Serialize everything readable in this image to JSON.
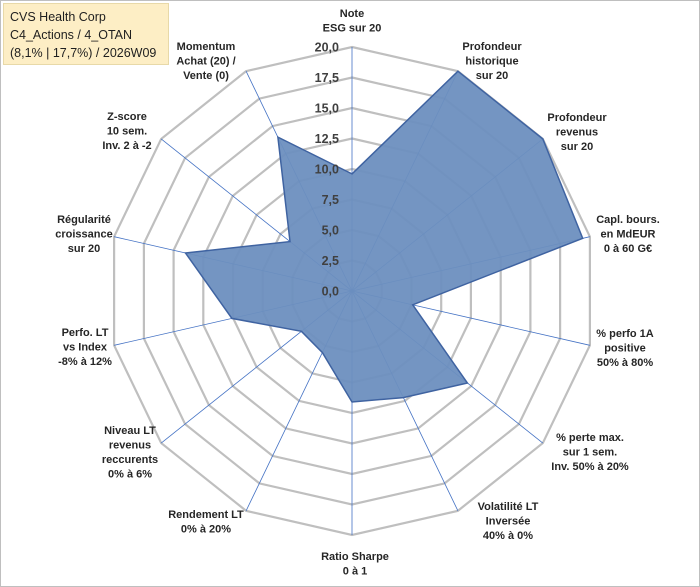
{
  "title_box": {
    "line1": "CVS Health Corp",
    "line2": "C4_Actions / 4_OTAN",
    "line3": "(8,1% | 17,7%) / 2026W09"
  },
  "chart_data": {
    "type": "radar",
    "r_range": [
      0,
      20
    ],
    "ticks": [
      "0,0",
      "2,5",
      "5,0",
      "7,5",
      "10,0",
      "12,5",
      "15,0",
      "17,5",
      "20,0"
    ],
    "grid": true,
    "axes": [
      {
        "label": [
          "Note",
          "ESG sur 20"
        ],
        "value": 9.6
      },
      {
        "label": [
          "Profondeur",
          "historique",
          "sur 20"
        ],
        "value": 20
      },
      {
        "label": [
          "Profondeur",
          "revenus",
          "sur 20"
        ],
        "value": 20
      },
      {
        "label": [
          "Capl. bours.",
          "en MdEUR",
          "0 à 60 G€"
        ],
        "value": 19.4
      },
      {
        "label": [
          "% perfo 1A",
          "positive",
          "50% à 80%"
        ],
        "value": 5.1
      },
      {
        "label": [
          "% perte max.",
          "sur 1 sem.",
          "Inv. 50% à 20%"
        ],
        "value": 12.1
      },
      {
        "label": [
          "Volatilité LT",
          "Inversée",
          "40% à 0%"
        ],
        "value": 9.7
      },
      {
        "label": [
          "Ratio Sharpe",
          "0 à 1"
        ],
        "value": 9.1
      },
      {
        "label": [
          "Rendement LT",
          "0% à 20%"
        ],
        "value": 5.6
      },
      {
        "label": [
          "Niveau LT",
          "revenus",
          "reccurents",
          "0% à 6%"
        ],
        "value": 5.3
      },
      {
        "label": [
          "Perfo. LT",
          "vs Index",
          "-8% à 12%"
        ],
        "value": 10.1
      },
      {
        "label": [
          "Régularité",
          "croissance",
          "sur 20"
        ],
        "value": 14.0
      },
      {
        "label": [
          "Z-score",
          "10 sem.",
          "Inv. 2 à -2"
        ],
        "value": 6.5
      },
      {
        "label": [
          "Momentum",
          "Achat (20) /",
          "Vente (0)"
        ],
        "value": 14.0
      }
    ],
    "colors": {
      "fill": "#6d8fbf",
      "stroke": "#3f63a1",
      "grid": "#bfbfbf",
      "spoke": "#4472c4"
    }
  }
}
